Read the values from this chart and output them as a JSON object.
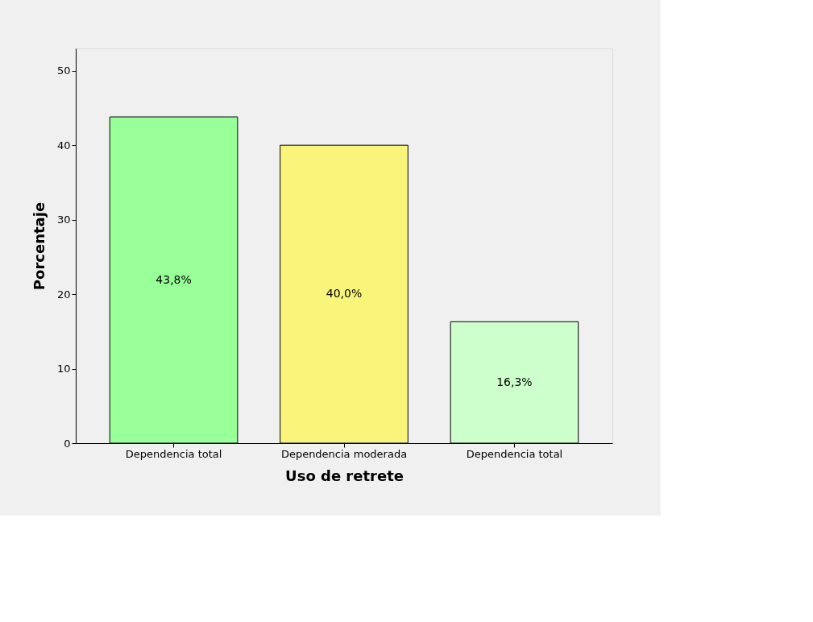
{
  "chart_data": {
    "type": "bar",
    "xlabel": "Uso de retrete",
    "ylabel": "Porcentaje",
    "categories": [
      "Dependencia total",
      "Dependencia moderada",
      "Dependencia total"
    ],
    "values": [
      43.8,
      40.0,
      16.3
    ],
    "colors": [
      "#99ff99",
      "#f9f57a",
      "#ccffcc"
    ],
    "value_labels": [
      "43,8%",
      "40,0%",
      "16,3%"
    ],
    "ylim": [
      0,
      53
    ],
    "yticks": [
      0,
      10,
      20,
      30,
      40,
      50
    ],
    "grid": false,
    "legend": false
  }
}
